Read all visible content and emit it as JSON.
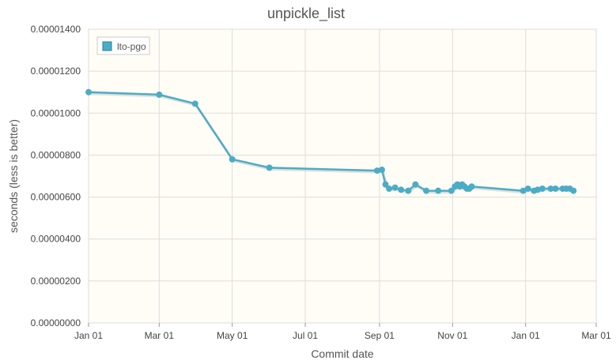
{
  "chart_data": {
    "type": "line",
    "title": "unpickle_list",
    "xlabel": "Commit date",
    "ylabel": "seconds (less is better)",
    "x_ticks": [
      "Jan 01",
      "Mar 01",
      "May 01",
      "Jul 01",
      "Sep 01",
      "Nov 01",
      "Jan 01",
      "Mar 01"
    ],
    "y_ticks": [
      "0.00000000",
      "0.00000200",
      "0.00000400",
      "0.00000600",
      "0.00000800",
      "0.00001000",
      "0.00001200",
      "0.00001400"
    ],
    "ylim": [
      0,
      1.4e-05
    ],
    "xlim": [
      "2017-01-01",
      "2018-03-01"
    ],
    "grid": true,
    "legend_position": "top-left",
    "colors": {
      "series": "#4bacc6",
      "plot_bg": "#fffdf6",
      "grid": "#dddddd",
      "shadow": "#bbbbbb"
    },
    "series": [
      {
        "name": "lto-pgo",
        "x": [
          "2017-01-01",
          "2017-03-01",
          "2017-03-31",
          "2017-05-01",
          "2017-06-01",
          "2017-08-30",
          "2017-09-03",
          "2017-09-06",
          "2017-09-09",
          "2017-09-14",
          "2017-09-19",
          "2017-09-25",
          "2017-10-01",
          "2017-10-10",
          "2017-10-20",
          "2017-10-31",
          "2017-11-03",
          "2017-11-05",
          "2017-11-07",
          "2017-11-09",
          "2017-11-11",
          "2017-11-13",
          "2017-11-15",
          "2017-11-17",
          "2017-12-30",
          "2018-01-03",
          "2018-01-08",
          "2018-01-11",
          "2018-01-15",
          "2018-01-22",
          "2018-01-26",
          "2018-02-01",
          "2018-02-04",
          "2018-02-07",
          "2018-02-10"
        ],
        "values": [
          1.1e-05,
          1.088e-05,
          1.045e-05,
          7.8e-06,
          7.4e-06,
          7.26e-06,
          7.3e-06,
          6.6e-06,
          6.4e-06,
          6.45e-06,
          6.35e-06,
          6.3e-06,
          6.6e-06,
          6.3e-06,
          6.3e-06,
          6.3e-06,
          6.5e-06,
          6.6e-06,
          6.5e-06,
          6.6e-06,
          6.5e-06,
          6.4e-06,
          6.4e-06,
          6.5e-06,
          6.3e-06,
          6.4e-06,
          6.3e-06,
          6.35e-06,
          6.4e-06,
          6.4e-06,
          6.4e-06,
          6.4e-06,
          6.4e-06,
          6.4e-06,
          6.3e-06
        ]
      }
    ]
  }
}
